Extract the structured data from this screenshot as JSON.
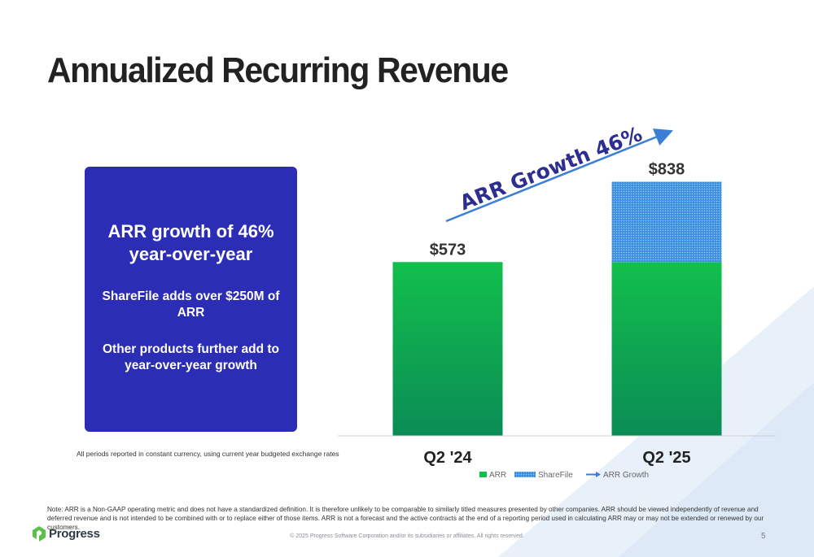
{
  "title": "Annualized Recurring Revenue",
  "callout": {
    "headline": "ARR growth of 46% year-over-year",
    "point1": "ShareFile adds over $250M of ARR",
    "point2": "Other products further add to year-over-year growth"
  },
  "footnote_left": "All periods reported in constant currency, using current year budgeted exchange rates",
  "note": "Note: ARR is a Non-GAAP operating metric and does not have a standardized definition.  It is therefore unlikely to be comparable to similarly titled measures presented by other companies. ARR should be viewed independently of revenue and deferred revenue and is not intended to be combined with or to replace either of those items. ARR is not a forecast and the active contracts at the end of a reporting period used in calculating ARR may or may not be extended or renewed by our customers.",
  "logo_text": "Progress",
  "copyright": "© 2025 Progress Software Corporation and/or its subsidiaries or affiliates. All rights reserved.",
  "page_number": "5",
  "colors": {
    "arr": "#12bf4c",
    "arr_dark": "#0a8c55",
    "sharefile": "#3a8fe0",
    "growth": "#3a7fd5",
    "callout_bg": "#2c2db5",
    "brand": "#5cc04a"
  },
  "chart_data": {
    "type": "bar",
    "stacked": true,
    "categories": [
      "Q2 '24",
      "Q2 '25"
    ],
    "series": [
      {
        "name": "ARR",
        "values": [
          573,
          573
        ]
      },
      {
        "name": "ShareFile",
        "values": [
          0,
          265
        ]
      }
    ],
    "totals": [
      573,
      838
    ],
    "data_labels": [
      "$573",
      "$838"
    ],
    "annotation": "ARR Growth 46%",
    "legend": [
      "ARR",
      "ShareFile",
      "ARR Growth"
    ],
    "legend_position": "bottom",
    "ylim": [
      0,
      1000
    ],
    "grid": false
  }
}
